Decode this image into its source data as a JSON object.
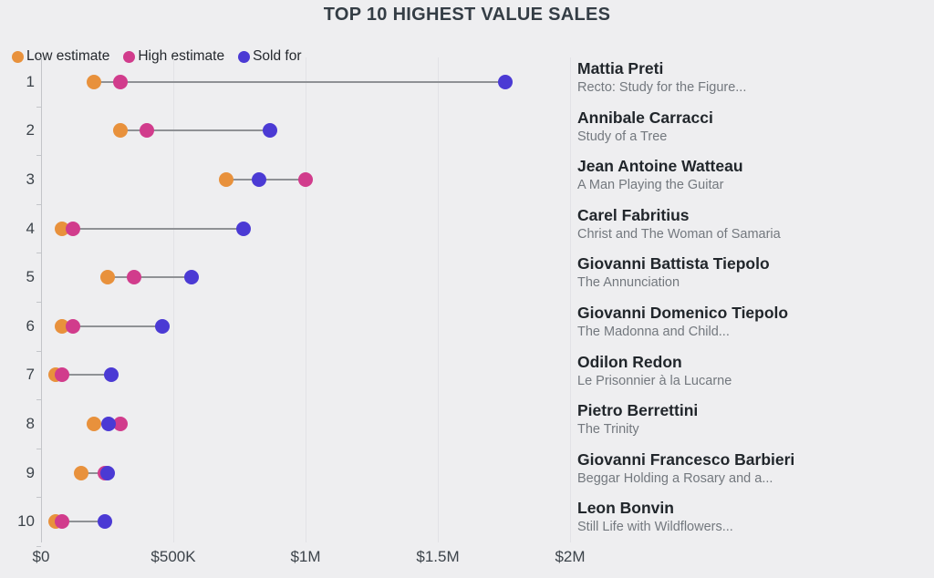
{
  "chart_data": {
    "type": "scatter",
    "variant": "dumbbell-dot-plot",
    "title": "TOP 10 HIGHEST VALUE SALES",
    "xlabel": "",
    "ylabel": "",
    "xlim": [
      0,
      2000000
    ],
    "xmax": 2000000,
    "grid": true,
    "legend_position": "top-left",
    "xticks": [
      {
        "label": "$0",
        "value": 0
      },
      {
        "label": "$500K",
        "value": 500000
      },
      {
        "label": "$1M",
        "value": 1000000
      },
      {
        "label": "$1.5M",
        "value": 1500000
      },
      {
        "label": "$2M",
        "value": 2000000
      }
    ],
    "series_meta": [
      {
        "key": "low",
        "label": "Low estimate",
        "color": "#E8913C"
      },
      {
        "key": "high",
        "label": "High estimate",
        "color": "#D13C8C"
      },
      {
        "key": "sold",
        "label": "Sold for",
        "color": "#4B3AD4"
      }
    ],
    "rows": [
      {
        "rank": "1",
        "artist": "Mattia Preti",
        "work": "Recto: Study for the Figure...",
        "low": 200000,
        "high": 300000,
        "sold": 1755000
      },
      {
        "rank": "2",
        "artist": "Annibale Carracci",
        "work": "Study of a Tree",
        "low": 300000,
        "high": 400000,
        "sold": 865000
      },
      {
        "rank": "3",
        "artist": "Jean Antoine Watteau",
        "work": "A Man Playing the Guitar",
        "low": 700000,
        "high": 1000000,
        "sold": 825000
      },
      {
        "rank": "4",
        "artist": "Carel Fabritius",
        "work": "Christ and The Woman of Samaria",
        "low": 80000,
        "high": 120000,
        "sold": 765000
      },
      {
        "rank": "5",
        "artist": "Giovanni Battista Tiepolo",
        "work": "The Annunciation",
        "low": 250000,
        "high": 350000,
        "sold": 570000
      },
      {
        "rank": "6",
        "artist": "Giovanni Domenico Tiepolo",
        "work": "The Madonna and Child...",
        "low": 80000,
        "high": 120000,
        "sold": 460000
      },
      {
        "rank": "7",
        "artist": "Odilon Redon",
        "work": "Le Prisonnier à la Lucarne",
        "low": 55000,
        "high": 80000,
        "sold": 265000
      },
      {
        "rank": "8",
        "artist": "Pietro Berrettini",
        "work": "The Trinity",
        "low": 200000,
        "high": 300000,
        "sold": 255000
      },
      {
        "rank": "9",
        "artist": "Giovanni Francesco Barbieri",
        "work": "Beggar Holding a Rosary and a...",
        "low": 150000,
        "high": 240000,
        "sold": 250000
      },
      {
        "rank": "10",
        "artist": "Leon Bonvin",
        "work": "Still Life with Wildflowers...",
        "low": 55000,
        "high": 80000,
        "sold": 240000
      }
    ]
  },
  "colors": {
    "background": "#EEEEF0",
    "title": "#343D45",
    "gridline": "#E2E2E6",
    "axis": "#C3C5C9",
    "connector": "#8F9195",
    "rank_label": "#3C434A",
    "artist_name": "#21262B",
    "work_title": "#73787E"
  }
}
